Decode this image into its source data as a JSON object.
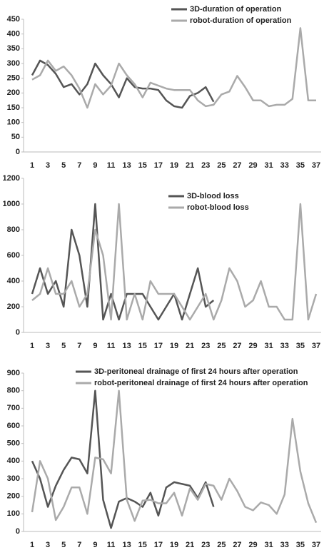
{
  "chart_data": [
    {
      "type": "line",
      "categories": [
        1,
        null,
        3,
        null,
        5,
        null,
        7,
        null,
        9,
        null,
        11,
        null,
        13,
        null,
        15,
        null,
        17,
        null,
        19,
        null,
        21,
        null,
        23,
        null,
        25,
        null,
        27,
        null,
        29,
        null,
        31,
        null,
        33,
        null,
        35,
        null,
        37
      ],
      "ylim": [
        0,
        450
      ],
      "yticks": [
        0,
        50,
        100,
        150,
        200,
        250,
        300,
        350,
        400,
        450
      ],
      "legend": "top",
      "series": [
        {
          "name": "3D-duration of operation",
          "color": "#555555",
          "values": [
            260,
            310,
            295,
            265,
            220,
            230,
            195,
            230,
            300,
            260,
            230,
            185,
            250,
            220,
            215,
            215,
            210,
            175,
            155,
            150,
            190,
            200,
            220,
            170,
            null,
            null,
            null,
            null,
            null,
            null,
            null,
            null,
            null,
            null,
            null,
            null,
            null
          ]
        },
        {
          "name": "robot-duration of operation",
          "color": "#aaaaaa",
          "values": [
            245,
            260,
            310,
            275,
            290,
            260,
            215,
            150,
            230,
            195,
            225,
            300,
            260,
            230,
            185,
            235,
            225,
            215,
            210,
            210,
            210,
            175,
            155,
            160,
            195,
            205,
            258,
            220,
            175,
            175,
            155,
            160,
            160,
            180,
            420,
            175,
            175
          ]
        }
      ]
    },
    {
      "type": "line",
      "categories": [
        1,
        null,
        3,
        null,
        5,
        null,
        7,
        null,
        9,
        null,
        11,
        null,
        13,
        null,
        15,
        null,
        17,
        null,
        19,
        null,
        21,
        null,
        23,
        null,
        25,
        null,
        27,
        null,
        29,
        null,
        31,
        null,
        33,
        null,
        35,
        null,
        37
      ],
      "ylim": [
        0,
        1200
      ],
      "yticks": [
        0,
        200,
        400,
        600,
        800,
        1000,
        1200
      ],
      "legend": "top",
      "series": [
        {
          "name": "3D-blood loss",
          "color": "#555555",
          "values": [
            300,
            500,
            300,
            400,
            200,
            800,
            600,
            200,
            1000,
            100,
            300,
            100,
            300,
            300,
            300,
            200,
            100,
            200,
            300,
            100,
            300,
            500,
            200,
            250,
            null,
            null,
            null,
            null,
            null,
            null,
            null,
            null,
            null,
            null,
            null,
            null,
            null
          ]
        },
        {
          "name": "robot-blood loss",
          "color": "#aaaaaa",
          "values": [
            250,
            300,
            500,
            300,
            300,
            400,
            200,
            300,
            800,
            600,
            100,
            1000,
            100,
            300,
            100,
            400,
            300,
            300,
            300,
            200,
            100,
            200,
            300,
            100,
            250,
            500,
            400,
            200,
            250,
            400,
            200,
            200,
            100,
            100,
            1000,
            100,
            300
          ]
        }
      ]
    },
    {
      "type": "line",
      "categories": [
        1,
        null,
        3,
        null,
        5,
        null,
        7,
        null,
        9,
        null,
        11,
        null,
        13,
        null,
        15,
        null,
        17,
        null,
        19,
        null,
        21,
        null,
        23,
        null,
        25,
        null,
        27,
        null,
        29,
        null,
        31,
        null,
        33,
        null,
        35,
        null,
        37
      ],
      "ylim": [
        0,
        900
      ],
      "yticks": [
        0,
        100,
        200,
        300,
        400,
        500,
        600,
        700,
        800,
        900
      ],
      "legend": "top",
      "series": [
        {
          "name": "3D-peritoneal drainage of first 24 hours after operation",
          "color": "#555555",
          "values": [
            400,
            300,
            140,
            260,
            350,
            420,
            410,
            330,
            800,
            180,
            20,
            170,
            190,
            170,
            140,
            220,
            90,
            250,
            280,
            270,
            260,
            190,
            280,
            140,
            null,
            null,
            null,
            null,
            null,
            null,
            null,
            null,
            null,
            null,
            null,
            null,
            null
          ]
        },
        {
          "name": "robot-peritoneal drainage of first 24 hours after operation",
          "color": "#aaaaaa",
          "values": [
            110,
            400,
            300,
            65,
            140,
            250,
            250,
            100,
            420,
            410,
            330,
            800,
            180,
            60,
            175,
            180,
            160,
            160,
            220,
            90,
            245,
            180,
            270,
            260,
            180,
            300,
            230,
            140,
            120,
            165,
            150,
            100,
            210,
            640,
            340,
            160,
            50
          ]
        }
      ]
    }
  ]
}
